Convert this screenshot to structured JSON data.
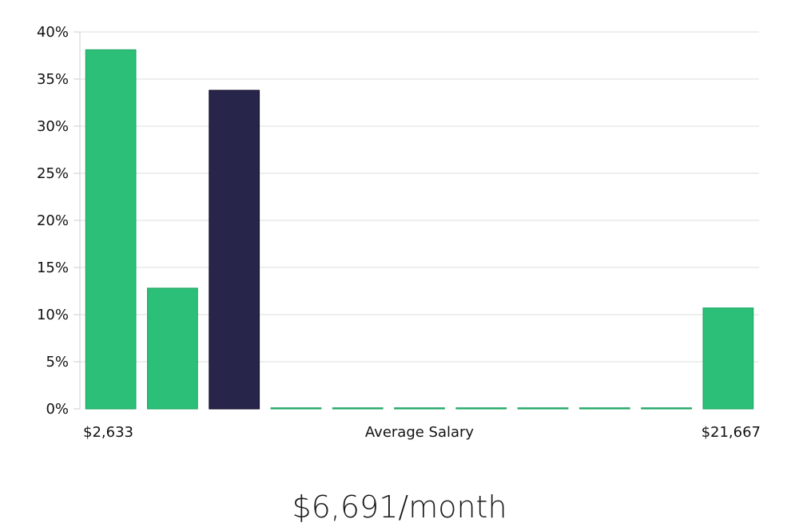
{
  "chart_data": {
    "type": "bar",
    "y_unit": "%",
    "ylim": [
      0,
      40
    ],
    "y_ticks": [
      0,
      5,
      10,
      15,
      20,
      25,
      30,
      35,
      40
    ],
    "values": [
      38.1,
      12.8,
      33.8,
      0,
      0,
      0,
      0,
      0,
      0,
      0,
      10.7
    ],
    "highlight_index": 2,
    "x_min_label": "$2,633",
    "x_center_label": "Average Salary",
    "x_max_label": "$21,667",
    "summary": "$6,691/month",
    "grid": true,
    "colors": {
      "bar": "#2bbf78",
      "bar_stroke": "#23a866",
      "highlight": "#28254a",
      "highlight_stroke": "#15132e"
    }
  }
}
